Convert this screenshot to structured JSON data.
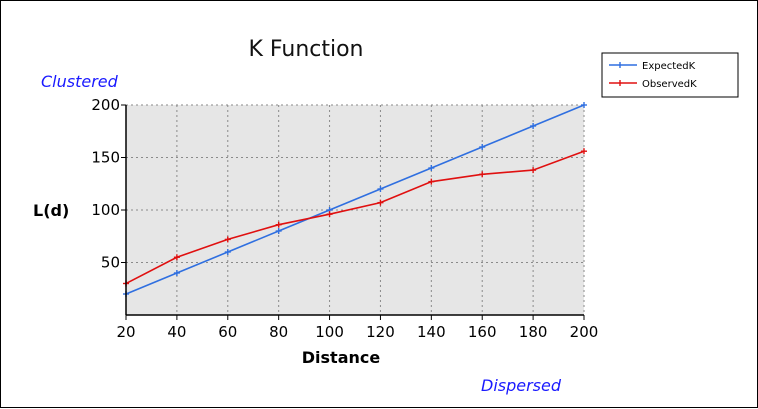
{
  "chart_data": {
    "type": "line",
    "title": "K Function",
    "xlabel": "Distance",
    "ylabel": "L(d)",
    "x": [
      20,
      40,
      60,
      80,
      100,
      120,
      140,
      160,
      180,
      200
    ],
    "xlim": [
      20,
      200
    ],
    "ylim": [
      0,
      200
    ],
    "xticks": [
      20,
      40,
      60,
      80,
      100,
      120,
      140,
      160,
      180,
      200
    ],
    "yticks": [
      50,
      100,
      150,
      200
    ],
    "grid": true,
    "legend": "top-right",
    "annotations": {
      "top_left": "Clustered",
      "bottom_right": "Dispersed"
    },
    "series": [
      {
        "name": "ExpectedK",
        "color": "#2f6fe0",
        "values": [
          20,
          40,
          60,
          80,
          100,
          120,
          140,
          160,
          180,
          200
        ]
      },
      {
        "name": "ObservedK",
        "color": "#e01010",
        "values": [
          30,
          55,
          72,
          86,
          96,
          107,
          127,
          134,
          138,
          156
        ]
      }
    ],
    "colors": {
      "plot_background": "#e6e6e6",
      "grid": "#8a8a8a",
      "annotation": "#1a1aff"
    }
  }
}
